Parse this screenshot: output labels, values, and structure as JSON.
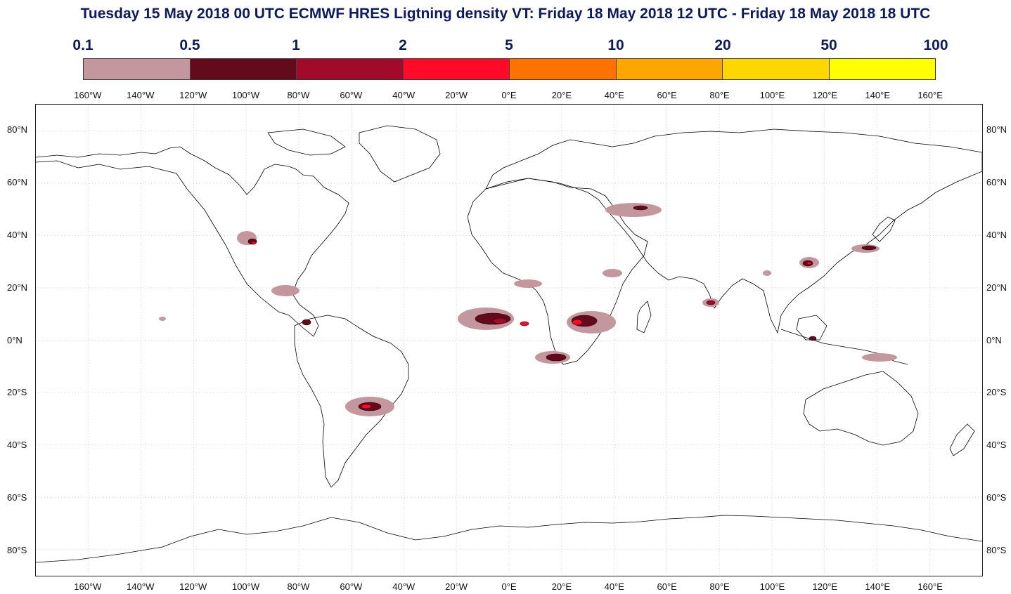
{
  "title": "Tuesday 15 May 2018 00 UTC ECMWF HRES Ligtning density VT: Friday 18 May 2018 12 UTC - Friday 18 May 2018 18 UTC",
  "colorbar": {
    "labels": [
      "0.1",
      "0.5",
      "1",
      "2",
      "5",
      "10",
      "20",
      "50",
      "100"
    ],
    "colors": [
      "#c4979f",
      "#630a1c",
      "#a10a2a",
      "#ff0a28",
      "#ff7200",
      "#ffa500",
      "#ffd700",
      "#ffff00"
    ]
  },
  "axes": {
    "lon_labels": [
      "160°W",
      "140°W",
      "120°W",
      "100°W",
      "80°W",
      "60°W",
      "40°W",
      "20°W",
      "0°E",
      "20°E",
      "40°E",
      "60°E",
      "80°E",
      "100°E",
      "120°E",
      "140°E",
      "160°E"
    ],
    "lat_labels": [
      "80°N",
      "60°N",
      "40°N",
      "20°N",
      "0°N",
      "20°S",
      "40°S",
      "60°S",
      "80°S"
    ]
  },
  "map": {
    "lon_range": [
      -180,
      180
    ],
    "lat_range": [
      -90,
      90
    ],
    "grid": "dotted",
    "coastline_color": "#000000"
  }
}
